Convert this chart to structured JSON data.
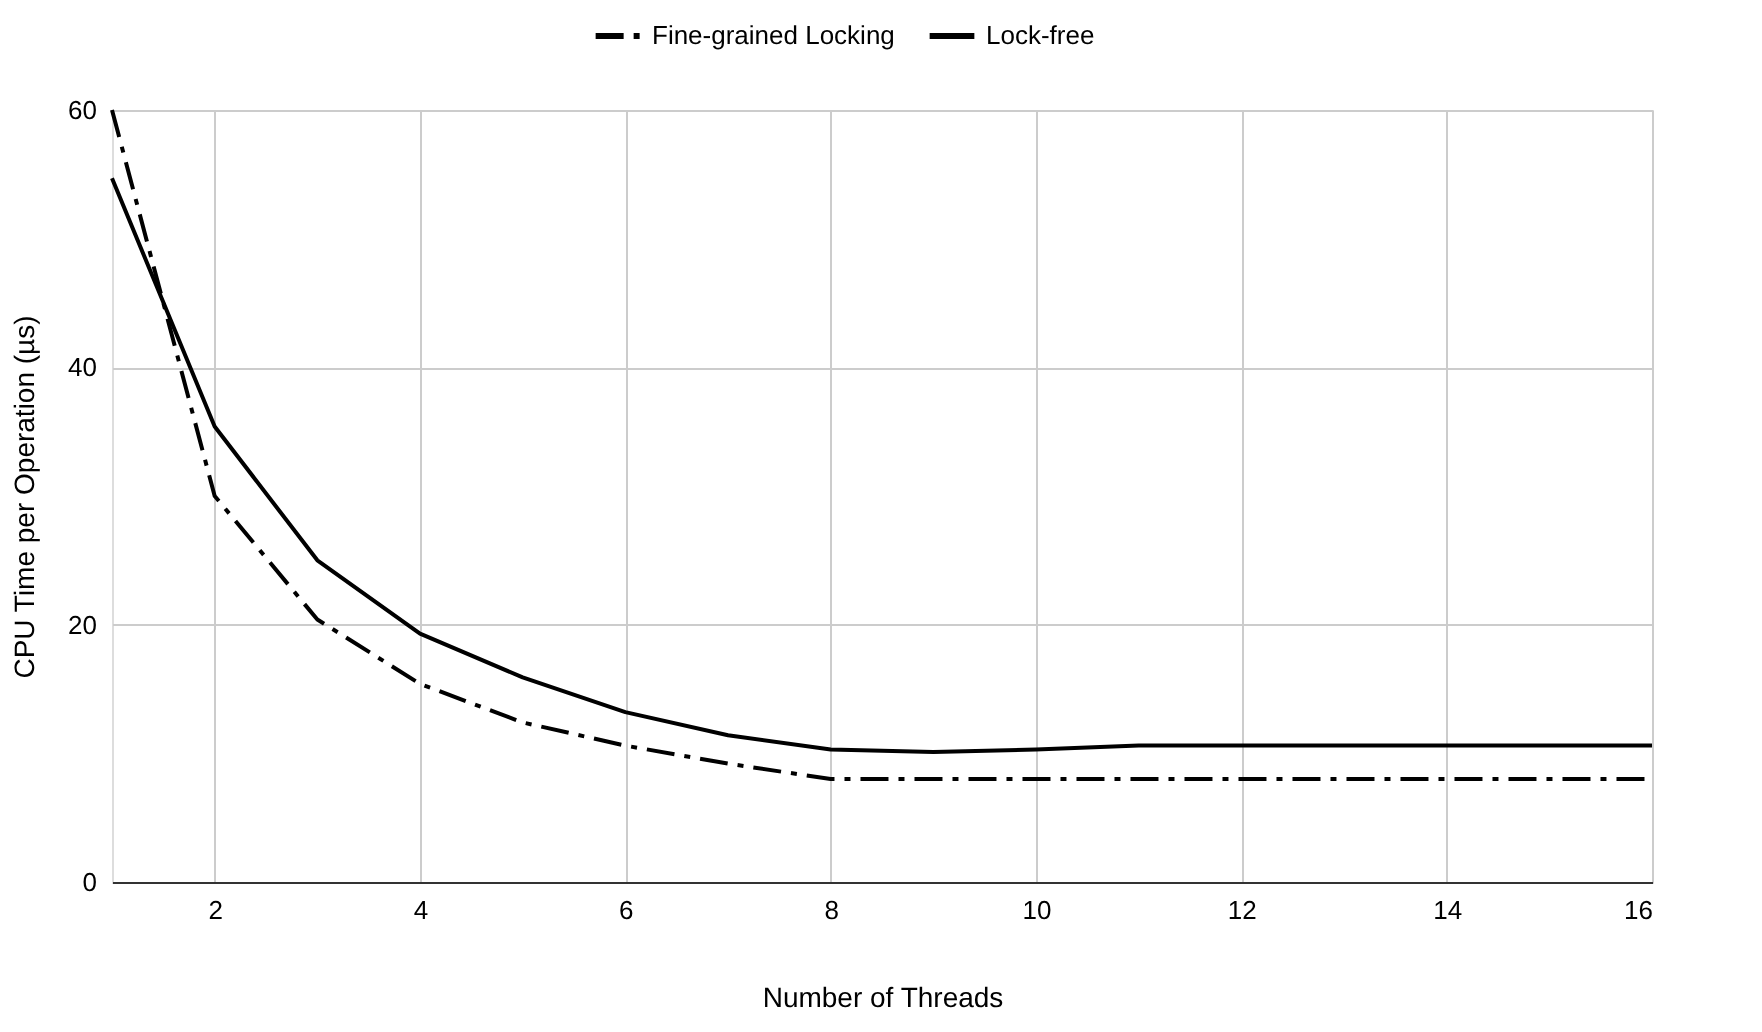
{
  "chart_data": {
    "type": "line",
    "xlabel": "Number of Threads",
    "ylabel": "CPU Time per Operation (µs)",
    "x": [
      1,
      2,
      3,
      4,
      5,
      6,
      7,
      8,
      9,
      10,
      11,
      12,
      13,
      14,
      15,
      16
    ],
    "series": [
      {
        "name": "Fine-grained Locking",
        "color": "#000000",
        "line_style": "dashed",
        "values": [
          60,
          30,
          20.4,
          15.4,
          12.4,
          10.6,
          9.2,
          8,
          8,
          8,
          8,
          8,
          8,
          8,
          8,
          8
        ]
      },
      {
        "name": "Lock-free",
        "color": "#000000",
        "line_style": "solid",
        "values": [
          54.7,
          35.4,
          25,
          19.3,
          15.9,
          13.2,
          11.4,
          10.3,
          10.1,
          10.3,
          10.6,
          10.6,
          10.6,
          10.6,
          10.6,
          10.6
        ]
      }
    ],
    "xlim": [
      1,
      16
    ],
    "xticks": [
      2,
      4,
      6,
      8,
      10,
      12,
      14,
      16
    ],
    "ylim": [
      0,
      60
    ],
    "yticks": [
      0,
      20,
      40,
      60
    ],
    "grid": true,
    "legend": "top",
    "marker": "none"
  }
}
